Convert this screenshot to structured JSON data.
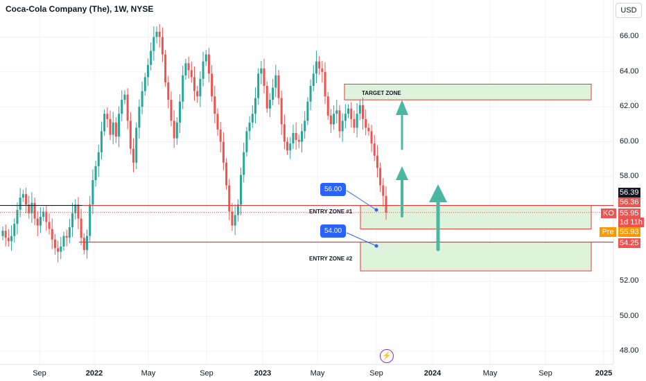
{
  "header": {
    "title": "Coca-Cola Company (The), 1W, NYSE",
    "currency": "USD"
  },
  "zones": [
    {
      "label": "TARGET ZONE"
    },
    {
      "label": "ENTRY ZONE #1"
    },
    {
      "label": "ENTRY ZONE #2"
    }
  ],
  "bubbles": [
    {
      "text": "56.00"
    },
    {
      "text": "54.00"
    }
  ],
  "y_ticks": [
    "66.00",
    "64.00",
    "62.00",
    "60.00",
    "58.00",
    "52.00",
    "50.00",
    "48.00"
  ],
  "x_ticks": [
    {
      "text": "Sep",
      "bold": false
    },
    {
      "text": "2022",
      "bold": true
    },
    {
      "text": "May",
      "bold": false
    },
    {
      "text": "Sep",
      "bold": false
    },
    {
      "text": "2023",
      "bold": true
    },
    {
      "text": "May",
      "bold": false
    },
    {
      "text": "Sep",
      "bold": false
    },
    {
      "text": "2024",
      "bold": true
    },
    {
      "text": "May",
      "bold": false
    },
    {
      "text": "Sep",
      "bold": false
    },
    {
      "text": "2025",
      "bold": true
    }
  ],
  "price_tags": {
    "last": "56.39",
    "high": "56.36",
    "close": "55.95",
    "ticker": "KO",
    "countdown": "1d 11h",
    "pre_label": "Pre",
    "pre_value": "55.93",
    "level": "54.25"
  },
  "colors": {
    "up": "#26a69a",
    "down": "#ef5350",
    "zone_fill": "#dff2dc",
    "zone_border": "#e53935",
    "arrow": "#4ab8a0",
    "bubble": "#2962ff"
  },
  "flash_icon": "lightning-icon",
  "chart_data": {
    "type": "candlestick",
    "symbol": "KO",
    "interval": "1W",
    "exchange": "NYSE",
    "y_range": [
      47.5,
      67.8
    ],
    "zones": {
      "target": [
        62.4,
        63.3
      ],
      "entry_1": [
        55.0,
        56.35
      ],
      "entry_2": [
        52.6,
        54.25
      ]
    },
    "lines": [
      56.35,
      54.25
    ],
    "candles_close": [
      54.9,
      54.5,
      54.3,
      54.6,
      55.3,
      56.1,
      56.8,
      57.0,
      56.4,
      55.9,
      56.5,
      55.6,
      55.2,
      55.7,
      56.0,
      55.4,
      55.0,
      54.4,
      53.9,
      53.7,
      54.0,
      54.6,
      54.5,
      55.1,
      55.9,
      56.4,
      55.6,
      54.5,
      53.8,
      54.6,
      56.4,
      57.8,
      58.6,
      59.4,
      60.6,
      61.6,
      61.3,
      60.4,
      61.1,
      60.3,
      61.6,
      62.4,
      62.7,
      61.2,
      59.6,
      58.8,
      60.8,
      62.0,
      62.9,
      63.7,
      64.4,
      65.2,
      66.0,
      66.3,
      66.0,
      65.0,
      63.4,
      62.4,
      61.2,
      60.2,
      61.1,
      62.3,
      63.8,
      64.5,
      64.1,
      63.7,
      62.9,
      62.6,
      63.6,
      64.6,
      65.0,
      63.9,
      62.6,
      61.6,
      60.7,
      60.0,
      58.8,
      57.5,
      56.0,
      55.2,
      55.8,
      56.4,
      58.1,
      59.4,
      60.6,
      61.1,
      61.6,
      62.5,
      63.9,
      64.2,
      63.2,
      61.9,
      62.4,
      63.1,
      63.8,
      62.5,
      61.0,
      60.0,
      59.5,
      59.9,
      60.5,
      60.1,
      60.0,
      60.6,
      61.2,
      62.3,
      63.2,
      63.9,
      64.6,
      64.2,
      64.0,
      62.6,
      61.5,
      61.0,
      61.6,
      61.8,
      60.6,
      61.2,
      61.6,
      61.9,
      61.3,
      60.8,
      61.6,
      62.1,
      61.3,
      60.8,
      60.6,
      59.9,
      59.2,
      58.5,
      57.5,
      56.9,
      55.95
    ]
  }
}
